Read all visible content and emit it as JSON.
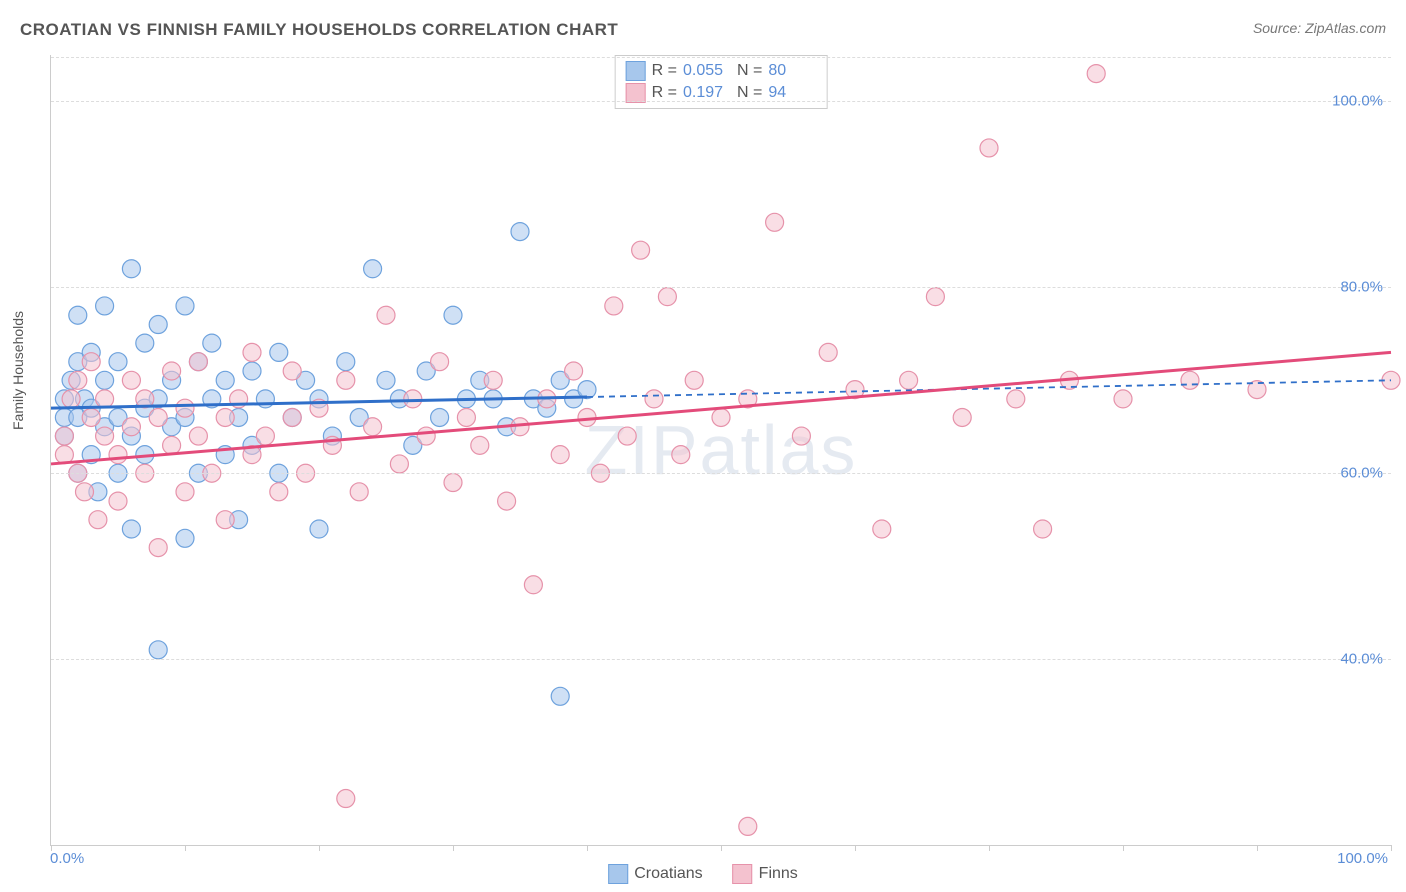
{
  "title": "CROATIAN VS FINNISH FAMILY HOUSEHOLDS CORRELATION CHART",
  "source": "Source: ZipAtlas.com",
  "watermark": "ZIPatlas",
  "ylabel": "Family Households",
  "chart": {
    "type": "scatter",
    "background_color": "#ffffff",
    "grid_color": "#dddddd",
    "axis_color": "#cccccc",
    "tick_label_color": "#5b8dd6",
    "text_color": "#555555",
    "xlim": [
      0,
      100
    ],
    "ylim": [
      20,
      105
    ],
    "xtick_positions": [
      0,
      10,
      20,
      30,
      40,
      50,
      60,
      70,
      80,
      90,
      100
    ],
    "xtick_labels": {
      "0": "0.0%",
      "100": "100.0%"
    },
    "ytick_positions": [
      40,
      60,
      80,
      100
    ],
    "ytick_labels": [
      "40.0%",
      "60.0%",
      "80.0%",
      "100.0%"
    ],
    "marker_radius": 9,
    "marker_opacity": 0.55,
    "line_width": 3,
    "dash_pattern": "6,5",
    "series": [
      {
        "name": "Croatians",
        "color_fill": "#a7c7ec",
        "color_stroke": "#6ea2dd",
        "line_color": "#2f6fc9",
        "R": "0.055",
        "N": "80",
        "trend": {
          "x1": 0,
          "y1": 67,
          "x2": 100,
          "y2": 70,
          "solid_until_x": 40
        },
        "points": [
          [
            1,
            66
          ],
          [
            1,
            68
          ],
          [
            1,
            64
          ],
          [
            1.5,
            70
          ],
          [
            2,
            77
          ],
          [
            2,
            72
          ],
          [
            2,
            60
          ],
          [
            2,
            66
          ],
          [
            2.5,
            68
          ],
          [
            3,
            62
          ],
          [
            3,
            73
          ],
          [
            3,
            67
          ],
          [
            3.5,
            58
          ],
          [
            4,
            70
          ],
          [
            4,
            65
          ],
          [
            4,
            78
          ],
          [
            5,
            66
          ],
          [
            5,
            60
          ],
          [
            5,
            72
          ],
          [
            6,
            82
          ],
          [
            6,
            64
          ],
          [
            6,
            54
          ],
          [
            7,
            67
          ],
          [
            7,
            74
          ],
          [
            7,
            62
          ],
          [
            8,
            76
          ],
          [
            8,
            68
          ],
          [
            8,
            41
          ],
          [
            9,
            65
          ],
          [
            9,
            70
          ],
          [
            10,
            78
          ],
          [
            10,
            66
          ],
          [
            10,
            53
          ],
          [
            11,
            72
          ],
          [
            11,
            60
          ],
          [
            12,
            68
          ],
          [
            12,
            74
          ],
          [
            13,
            62
          ],
          [
            13,
            70
          ],
          [
            14,
            66
          ],
          [
            14,
            55
          ],
          [
            15,
            71
          ],
          [
            15,
            63
          ],
          [
            16,
            68
          ],
          [
            17,
            73
          ],
          [
            17,
            60
          ],
          [
            18,
            66
          ],
          [
            19,
            70
          ],
          [
            20,
            68
          ],
          [
            20,
            54
          ],
          [
            21,
            64
          ],
          [
            22,
            72
          ],
          [
            23,
            66
          ],
          [
            24,
            82
          ],
          [
            25,
            70
          ],
          [
            26,
            68
          ],
          [
            27,
            63
          ],
          [
            28,
            71
          ],
          [
            29,
            66
          ],
          [
            30,
            77
          ],
          [
            31,
            68
          ],
          [
            32,
            70
          ],
          [
            33,
            68
          ],
          [
            34,
            65
          ],
          [
            35,
            86
          ],
          [
            36,
            68
          ],
          [
            37,
            67
          ],
          [
            38,
            70
          ],
          [
            38,
            36
          ],
          [
            39,
            68
          ],
          [
            40,
            69
          ]
        ]
      },
      {
        "name": "Finns",
        "color_fill": "#f4c2cf",
        "color_stroke": "#e692aa",
        "line_color": "#e34b7a",
        "R": "0.197",
        "N": "94",
        "trend": {
          "x1": 0,
          "y1": 61,
          "x2": 100,
          "y2": 73,
          "solid_until_x": 100
        },
        "points": [
          [
            1,
            64
          ],
          [
            1,
            62
          ],
          [
            1.5,
            68
          ],
          [
            2,
            60
          ],
          [
            2,
            70
          ],
          [
            2.5,
            58
          ],
          [
            3,
            66
          ],
          [
            3,
            72
          ],
          [
            3.5,
            55
          ],
          [
            4,
            64
          ],
          [
            4,
            68
          ],
          [
            5,
            62
          ],
          [
            5,
            57
          ],
          [
            6,
            65
          ],
          [
            6,
            70
          ],
          [
            7,
            60
          ],
          [
            7,
            68
          ],
          [
            8,
            66
          ],
          [
            8,
            52
          ],
          [
            9,
            63
          ],
          [
            9,
            71
          ],
          [
            10,
            58
          ],
          [
            10,
            67
          ],
          [
            11,
            64
          ],
          [
            11,
            72
          ],
          [
            12,
            60
          ],
          [
            13,
            66
          ],
          [
            13,
            55
          ],
          [
            14,
            68
          ],
          [
            15,
            62
          ],
          [
            15,
            73
          ],
          [
            16,
            64
          ],
          [
            17,
            58
          ],
          [
            18,
            66
          ],
          [
            18,
            71
          ],
          [
            19,
            60
          ],
          [
            20,
            67
          ],
          [
            21,
            63
          ],
          [
            22,
            25
          ],
          [
            22,
            70
          ],
          [
            23,
            58
          ],
          [
            24,
            65
          ],
          [
            25,
            77
          ],
          [
            26,
            61
          ],
          [
            27,
            68
          ],
          [
            28,
            64
          ],
          [
            29,
            72
          ],
          [
            30,
            59
          ],
          [
            31,
            66
          ],
          [
            32,
            63
          ],
          [
            33,
            70
          ],
          [
            34,
            57
          ],
          [
            35,
            65
          ],
          [
            36,
            48
          ],
          [
            37,
            68
          ],
          [
            38,
            62
          ],
          [
            39,
            71
          ],
          [
            40,
            66
          ],
          [
            41,
            60
          ],
          [
            42,
            78
          ],
          [
            43,
            64
          ],
          [
            44,
            84
          ],
          [
            45,
            68
          ],
          [
            46,
            79
          ],
          [
            47,
            62
          ],
          [
            48,
            70
          ],
          [
            50,
            66
          ],
          [
            52,
            68
          ],
          [
            52,
            22
          ],
          [
            54,
            87
          ],
          [
            56,
            64
          ],
          [
            58,
            73
          ],
          [
            60,
            69
          ],
          [
            62,
            54
          ],
          [
            64,
            70
          ],
          [
            66,
            79
          ],
          [
            68,
            66
          ],
          [
            70,
            95
          ],
          [
            72,
            68
          ],
          [
            74,
            54
          ],
          [
            76,
            70
          ],
          [
            78,
            103
          ],
          [
            80,
            68
          ],
          [
            85,
            70
          ],
          [
            90,
            69
          ],
          [
            100,
            70
          ]
        ]
      }
    ],
    "legend_bottom": [
      {
        "label": "Croatians",
        "fill": "#a7c7ec",
        "stroke": "#6ea2dd"
      },
      {
        "label": "Finns",
        "fill": "#f4c2cf",
        "stroke": "#e692aa"
      }
    ]
  }
}
